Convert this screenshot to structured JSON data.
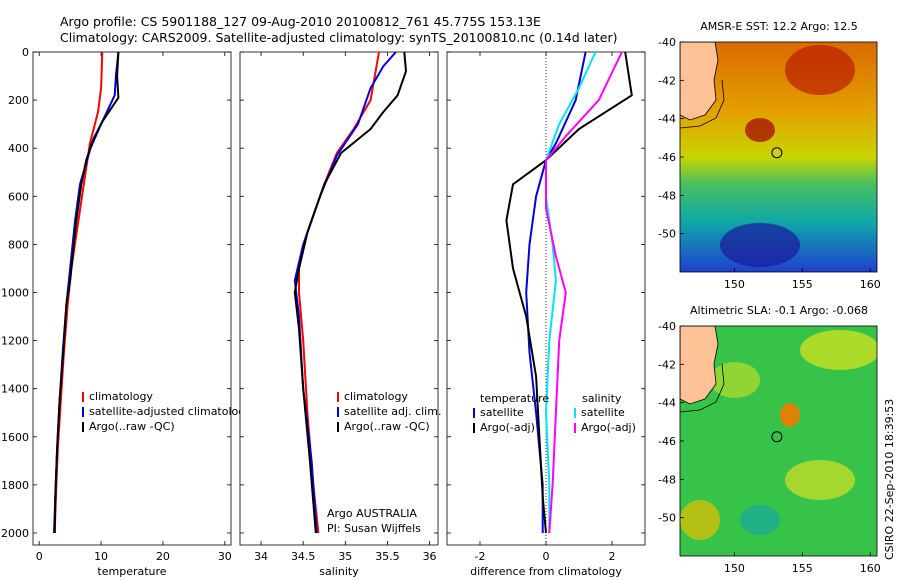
{
  "header": {
    "line1": "Argo profile: CS 5901188_127 09-Aug-2010 20100812_761 45.775S 153.13E",
    "line2": "Climatology: CARS2009. Satellite-adjusted climatology: synTS_20100810.nc (0.14d later)"
  },
  "colors": {
    "climatology": "#ff0000",
    "satellite": "#0000dd",
    "argo": "#000000",
    "sat_diff": "#00e5ee",
    "argo_adj": "#ff00ff"
  },
  "chart_data": [
    {
      "type": "line",
      "id": "temperature",
      "xlabel": "temperature",
      "ylabel": "",
      "xlim": [
        -1,
        31
      ],
      "ylim": [
        2050,
        0
      ],
      "xticks": [
        0,
        10,
        20,
        30
      ],
      "yticks": [
        0,
        200,
        400,
        600,
        800,
        1000,
        1200,
        1400,
        1600,
        1800,
        2000
      ],
      "legend": [
        "climatology",
        "satellite-adjusted climatology",
        "Argo(..raw -QC)"
      ],
      "series": [
        {
          "name": "climatology",
          "color": "#ff0000",
          "points": [
            [
              10.2,
              0
            ],
            [
              10.0,
              150
            ],
            [
              9.5,
              250
            ],
            [
              8.2,
              380
            ],
            [
              7.5,
              500
            ],
            [
              6.8,
              620
            ],
            [
              6.0,
              760
            ],
            [
              5.2,
              900
            ],
            [
              4.6,
              1050
            ],
            [
              4.0,
              1250
            ],
            [
              3.5,
              1450
            ],
            [
              3.0,
              1650
            ],
            [
              2.7,
              1850
            ],
            [
              2.5,
              2000
            ]
          ]
        },
        {
          "name": "satellite",
          "color": "#0000dd",
          "points": [
            [
              12.8,
              0
            ],
            [
              12.4,
              100
            ],
            [
              12.2,
              180
            ],
            [
              10.0,
              300
            ],
            [
              8.3,
              400
            ],
            [
              6.6,
              550
            ],
            [
              5.8,
              700
            ],
            [
              5.2,
              850
            ],
            [
              4.8,
              950
            ],
            [
              4.4,
              1050
            ],
            [
              3.8,
              1250
            ],
            [
              3.3,
              1450
            ],
            [
              2.9,
              1650
            ],
            [
              2.6,
              1850
            ],
            [
              2.4,
              2000
            ]
          ]
        },
        {
          "name": "Argo",
          "color": "#000000",
          "points": [
            [
              12.8,
              0
            ],
            [
              12.6,
              100
            ],
            [
              12.8,
              190
            ],
            [
              10.2,
              290
            ],
            [
              8.8,
              360
            ],
            [
              7.6,
              450
            ],
            [
              6.8,
              550
            ],
            [
              6.0,
              700
            ],
            [
              5.4,
              850
            ],
            [
              5.0,
              950
            ],
            [
              4.4,
              1050
            ],
            [
              3.9,
              1250
            ],
            [
              3.3,
              1450
            ],
            [
              2.9,
              1650
            ],
            [
              2.6,
              1850
            ],
            [
              2.5,
              2000
            ]
          ]
        }
      ]
    },
    {
      "type": "line",
      "id": "salinity",
      "xlabel": "salinity",
      "ylabel": "",
      "xlim": [
        33.75,
        36.1
      ],
      "ylim": [
        2050,
        0
      ],
      "xticks": [
        34,
        34.5,
        35,
        35.5,
        36
      ],
      "yticks": [
        0,
        200,
        400,
        600,
        800,
        1000,
        1200,
        1400,
        1600,
        1800,
        2000
      ],
      "legend": [
        "climatology",
        "satellite adj. clim.",
        "Argo(..raw -QC)"
      ],
      "annotation": [
        "Argo AUSTRALIA",
        "PI: Susan Wijffels"
      ],
      "series": [
        {
          "name": "climatology",
          "color": "#ff0000",
          "points": [
            [
              35.4,
              0
            ],
            [
              35.35,
              100
            ],
            [
              35.3,
              200
            ],
            [
              35.1,
              320
            ],
            [
              34.9,
              420
            ],
            [
              34.75,
              550
            ],
            [
              34.55,
              750
            ],
            [
              34.45,
              900
            ],
            [
              34.45,
              1000
            ],
            [
              34.5,
              1200
            ],
            [
              34.55,
              1500
            ],
            [
              34.62,
              1800
            ],
            [
              34.68,
              2000
            ]
          ]
        },
        {
          "name": "satellite",
          "color": "#0000dd",
          "points": [
            [
              35.6,
              0
            ],
            [
              35.45,
              60
            ],
            [
              35.3,
              150
            ],
            [
              35.15,
              300
            ],
            [
              34.9,
              430
            ],
            [
              34.7,
              600
            ],
            [
              34.5,
              800
            ],
            [
              34.4,
              950
            ],
            [
              34.45,
              1100
            ],
            [
              34.5,
              1400
            ],
            [
              34.6,
              1700
            ],
            [
              34.66,
              2000
            ]
          ]
        },
        {
          "name": "Argo",
          "color": "#000000",
          "points": [
            [
              35.7,
              0
            ],
            [
              35.72,
              80
            ],
            [
              35.62,
              180
            ],
            [
              35.45,
              250
            ],
            [
              35.3,
              320
            ],
            [
              34.95,
              420
            ],
            [
              34.75,
              550
            ],
            [
              34.55,
              750
            ],
            [
              34.45,
              900
            ],
            [
              34.4,
              1000
            ],
            [
              34.45,
              1150
            ],
            [
              34.5,
              1400
            ],
            [
              34.58,
              1700
            ],
            [
              34.65,
              2000
            ]
          ]
        }
      ]
    },
    {
      "type": "line",
      "id": "difference",
      "xlabel": "difference from climatology",
      "ylabel": "",
      "xlim": [
        -3,
        3
      ],
      "ylim": [
        2050,
        0
      ],
      "xticks": [
        -2,
        0,
        2
      ],
      "yticks": [
        0,
        200,
        400,
        600,
        800,
        1000,
        1200,
        1400,
        1600,
        1800,
        2000
      ],
      "legend_left_title": "temperature",
      "legend_right_title": "salinity",
      "legend": [
        "satellite",
        "Argo(-adj)",
        "satellite",
        "Argo(-adj)"
      ],
      "series": [
        {
          "name": "temperature satellite",
          "color": "#0000dd",
          "points": [
            [
              1.2,
              0
            ],
            [
              0.9,
              200
            ],
            [
              0.3,
              380
            ],
            [
              0,
              450
            ],
            [
              -0.3,
              600
            ],
            [
              -0.5,
              800
            ],
            [
              -0.6,
              1000
            ],
            [
              -0.5,
              1250
            ],
            [
              -0.3,
              1500
            ],
            [
              -0.1,
              1800
            ],
            [
              -0.1,
              2000
            ]
          ]
        },
        {
          "name": "temperature Argo(-adj)",
          "color": "#000000",
          "points": [
            [
              2.4,
              0
            ],
            [
              2.6,
              180
            ],
            [
              1.0,
              320
            ],
            [
              0,
              450
            ],
            [
              -1.0,
              550
            ],
            [
              -1.2,
              700
            ],
            [
              -1.0,
              900
            ],
            [
              -0.6,
              1100
            ],
            [
              -0.3,
              1350
            ],
            [
              -0.2,
              1600
            ],
            [
              -0.1,
              1850
            ],
            [
              0,
              2000
            ]
          ]
        },
        {
          "name": "salinity satellite",
          "color": "#00e5ee",
          "points": [
            [
              1.5,
              0
            ],
            [
              1.0,
              150
            ],
            [
              0.4,
              300
            ],
            [
              0,
              450
            ],
            [
              0,
              600
            ],
            [
              0.2,
              800
            ],
            [
              0.3,
              950
            ],
            [
              0.1,
              1200
            ],
            [
              0,
              1500
            ],
            [
              0.1,
              1800
            ],
            [
              0.1,
              2000
            ]
          ]
        },
        {
          "name": "salinity Argo(-adj)",
          "color": "#ff00ff",
          "points": [
            [
              2.3,
              0
            ],
            [
              1.6,
              200
            ],
            [
              0.6,
              350
            ],
            [
              0,
              450
            ],
            [
              0,
              650
            ],
            [
              0.3,
              850
            ],
            [
              0.6,
              1000
            ],
            [
              0.4,
              1200
            ],
            [
              0.3,
              1500
            ],
            [
              0.2,
              1800
            ],
            [
              0.1,
              2000
            ]
          ]
        }
      ]
    },
    {
      "type": "heatmap",
      "id": "sst_map",
      "title": "AMSR-E SST: 12.2  Argo: 12.5",
      "xlim": [
        146,
        160.5
      ],
      "ylim": [
        -52,
        -40
      ],
      "xticks": [
        150,
        155,
        160
      ],
      "yticks": [
        -40,
        -42,
        -44,
        -46,
        -48,
        -50
      ],
      "marker": [
        153.13,
        -45.775
      ]
    },
    {
      "type": "heatmap",
      "id": "sla_map",
      "title": "Altimetric SLA: -0.1  Argo: -0.068",
      "xlim": [
        146,
        160.5
      ],
      "ylim": [
        -52,
        -40
      ],
      "xticks": [
        150,
        155,
        160
      ],
      "yticks": [
        -40,
        -42,
        -44,
        -46,
        -48,
        -50
      ],
      "marker": [
        153.13,
        -45.775
      ]
    }
  ],
  "footer": {
    "credit": "CSIRO 22-Sep-2010 18:39:53"
  }
}
